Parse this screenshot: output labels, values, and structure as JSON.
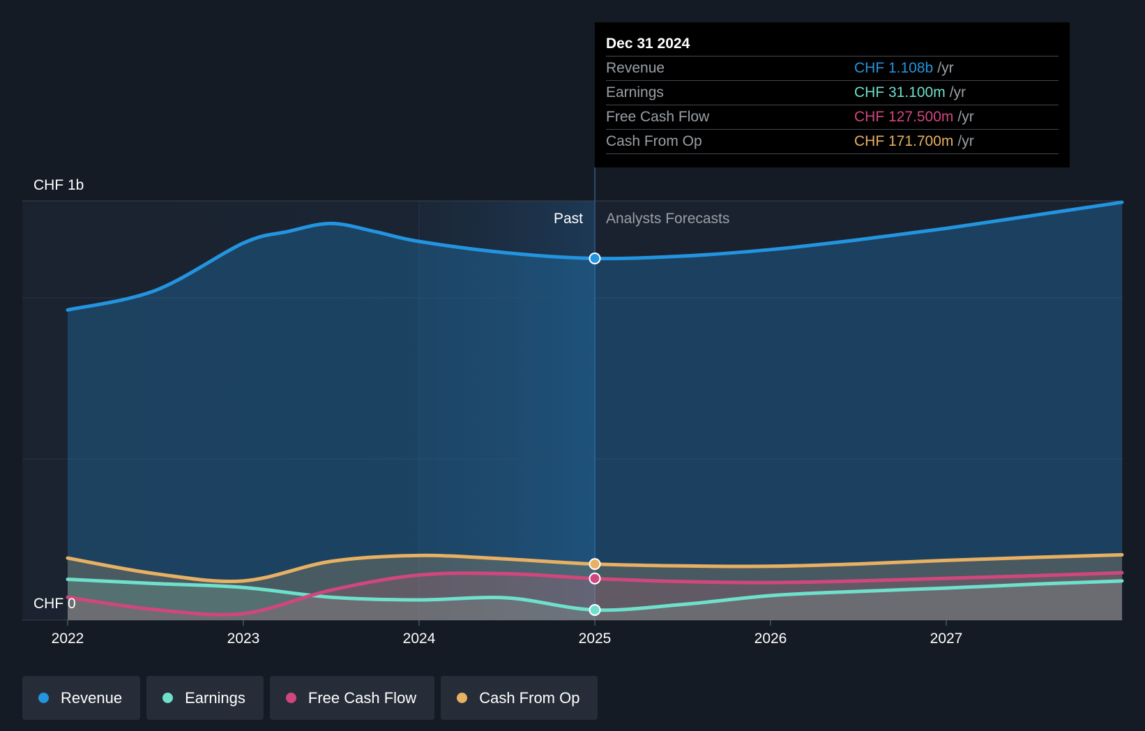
{
  "chart_data": {
    "type": "area",
    "y_axis": {
      "label_top": "CHF 1b",
      "label_bottom": "CHF 0",
      "ylim": [
        0,
        1.3
      ]
    },
    "x_ticks": [
      "2022",
      "2023",
      "2024",
      "2025",
      "2026",
      "2027"
    ],
    "past_label": "Past",
    "forecast_label": "Analysts Forecasts",
    "divider_x": 2025.0,
    "series": [
      {
        "name": "Revenue",
        "color": "#2394df",
        "points": [
          [
            2022.0,
            0.95
          ],
          [
            2022.5,
            1.01
          ],
          [
            2023.0,
            1.155
          ],
          [
            2023.25,
            1.19
          ],
          [
            2023.5,
            1.215
          ],
          [
            2023.75,
            1.19
          ],
          [
            2024.0,
            1.16
          ],
          [
            2024.5,
            1.125
          ],
          [
            2025.0,
            1.108
          ],
          [
            2025.5,
            1.115
          ],
          [
            2026.0,
            1.135
          ],
          [
            2026.5,
            1.165
          ],
          [
            2027.0,
            1.2
          ],
          [
            2027.5,
            1.24
          ],
          [
            2028.0,
            1.28
          ]
        ]
      },
      {
        "name": "Earnings",
        "color": "#6ee0cc",
        "points": [
          [
            2022.0,
            0.125
          ],
          [
            2022.5,
            0.112
          ],
          [
            2023.0,
            0.1
          ],
          [
            2023.5,
            0.07
          ],
          [
            2024.0,
            0.062
          ],
          [
            2024.5,
            0.068
          ],
          [
            2025.0,
            0.0311
          ],
          [
            2025.5,
            0.048
          ],
          [
            2026.0,
            0.075
          ],
          [
            2026.5,
            0.088
          ],
          [
            2027.0,
            0.098
          ],
          [
            2027.5,
            0.11
          ],
          [
            2028.0,
            0.12
          ]
        ]
      },
      {
        "name": "Free Cash Flow",
        "color": "#d0477d",
        "points": [
          [
            2022.0,
            0.07
          ],
          [
            2022.5,
            0.032
          ],
          [
            2023.0,
            0.02
          ],
          [
            2023.5,
            0.092
          ],
          [
            2024.0,
            0.138
          ],
          [
            2024.5,
            0.142
          ],
          [
            2025.0,
            0.1275
          ],
          [
            2025.5,
            0.118
          ],
          [
            2026.0,
            0.115
          ],
          [
            2026.5,
            0.12
          ],
          [
            2027.0,
            0.128
          ],
          [
            2027.5,
            0.136
          ],
          [
            2028.0,
            0.145
          ]
        ]
      },
      {
        "name": "Cash From Op",
        "color": "#e8b062",
        "points": [
          [
            2022.0,
            0.19
          ],
          [
            2022.5,
            0.142
          ],
          [
            2023.0,
            0.12
          ],
          [
            2023.5,
            0.18
          ],
          [
            2024.0,
            0.198
          ],
          [
            2024.5,
            0.187
          ],
          [
            2025.0,
            0.1717
          ],
          [
            2025.5,
            0.166
          ],
          [
            2026.0,
            0.165
          ],
          [
            2026.5,
            0.172
          ],
          [
            2027.0,
            0.183
          ],
          [
            2027.5,
            0.192
          ],
          [
            2028.0,
            0.2
          ]
        ]
      }
    ],
    "tooltip": {
      "date": "Dec 31 2024",
      "unit": "/yr",
      "rows": [
        {
          "label": "Revenue",
          "value": "CHF 1.108b",
          "color": "#2394df"
        },
        {
          "label": "Earnings",
          "value": "CHF 31.100m",
          "color": "#6ee0cc"
        },
        {
          "label": "Free Cash Flow",
          "value": "CHF 127.500m",
          "color": "#d0477d"
        },
        {
          "label": "Cash From Op",
          "value": "CHF 171.700m",
          "color": "#e8b062"
        }
      ]
    }
  },
  "legend": [
    {
      "label": "Revenue",
      "color": "#2394df"
    },
    {
      "label": "Earnings",
      "color": "#6ee0cc"
    },
    {
      "label": "Free Cash Flow",
      "color": "#d0477d"
    },
    {
      "label": "Cash From Op",
      "color": "#e8b062"
    }
  ]
}
